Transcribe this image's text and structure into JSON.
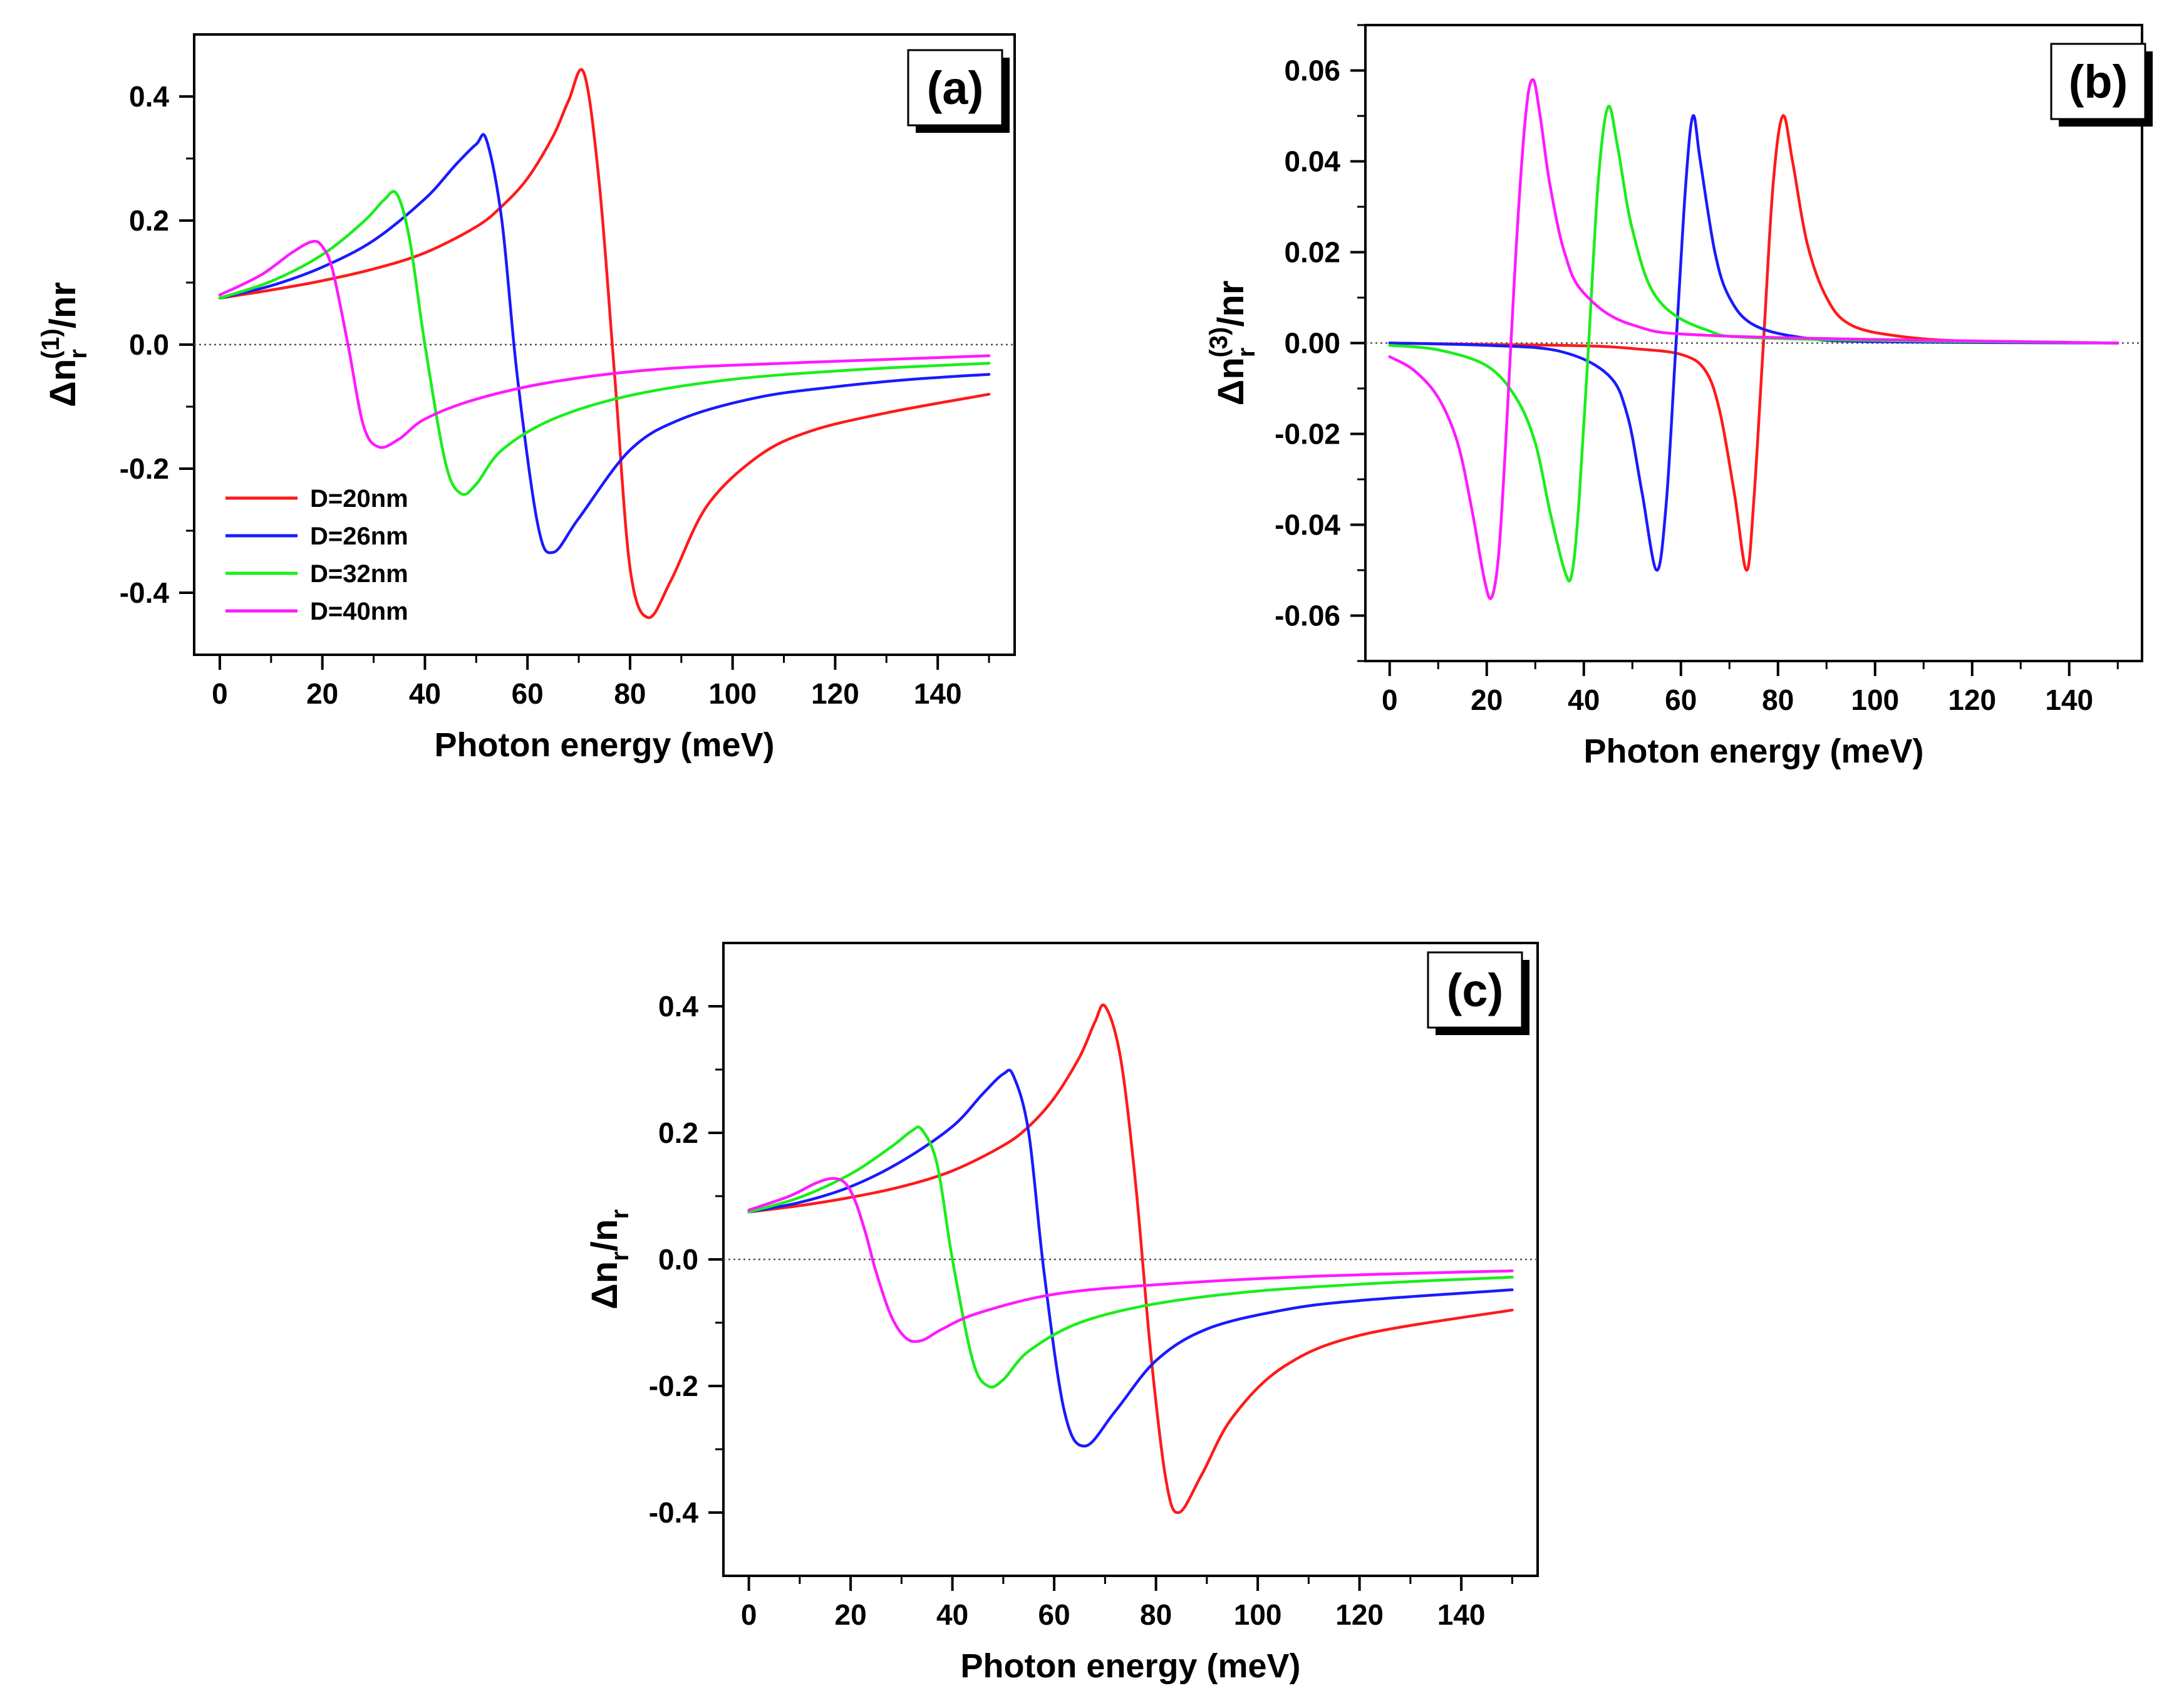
{
  "colors": {
    "D=20nm": "#ff1a1a",
    "D=26nm": "#1a1aff",
    "D=32nm": "#1aee1a",
    "D=40nm": "#ff1aff",
    "axis": "#000000",
    "zero_line": "#555555"
  },
  "chart_data": [
    {
      "id": "a",
      "type": "line",
      "panel_label": "(a)",
      "xlabel": "Photon energy (meV)",
      "ylabel": {
        "base": "Δn",
        "sub": "r",
        "sup": "(1)",
        "rest": "/nr"
      },
      "xlim": [
        -5,
        155
      ],
      "ylim": [
        -0.5,
        0.5
      ],
      "xticks": [
        0,
        20,
        40,
        60,
        80,
        100,
        120,
        140
      ],
      "yticks": [
        -0.4,
        -0.2,
        0.0,
        0.2,
        0.4
      ],
      "ytick_labels": [
        "-0.4",
        "-0.2",
        "0.0",
        "0.2",
        "0.4"
      ],
      "zero_line": true,
      "legend": {
        "position": "bottom-left",
        "entries": [
          "D=20nm",
          "D=26nm",
          "D=32nm",
          "D=40nm"
        ]
      },
      "series": [
        {
          "name": "D=20nm",
          "x": [
            0,
            10,
            20,
            30,
            40,
            50,
            55,
            60,
            65,
            68,
            71,
            74,
            77,
            80,
            83.5,
            88,
            95,
            105,
            115,
            130,
            150
          ],
          "y": [
            0.075,
            0.088,
            0.103,
            0.122,
            0.148,
            0.19,
            0.223,
            0.268,
            0.336,
            0.393,
            0.438,
            0.26,
            -0.05,
            -0.36,
            -0.44,
            -0.38,
            -0.26,
            -0.18,
            -0.14,
            -0.11,
            -0.08
          ]
        },
        {
          "name": "D=26nm",
          "x": [
            0,
            10,
            20,
            30,
            40,
            46,
            50,
            52,
            55,
            58,
            62,
            65,
            70,
            80,
            90,
            105,
            120,
            135,
            150
          ],
          "y": [
            0.075,
            0.095,
            0.125,
            0.168,
            0.235,
            0.29,
            0.323,
            0.33,
            0.2,
            -0.05,
            -0.29,
            -0.335,
            -0.28,
            -0.17,
            -0.12,
            -0.085,
            -0.068,
            -0.056,
            -0.048
          ]
        },
        {
          "name": "D=32nm",
          "x": [
            0,
            10,
            20,
            28,
            32,
            34.5,
            37,
            40,
            44,
            47,
            50,
            55,
            65,
            80,
            100,
            125,
            150
          ],
          "y": [
            0.075,
            0.102,
            0.145,
            0.198,
            0.233,
            0.243,
            0.17,
            0.0,
            -0.19,
            -0.24,
            -0.225,
            -0.17,
            -0.12,
            -0.082,
            -0.056,
            -0.04,
            -0.03
          ]
        },
        {
          "name": "D=40nm",
          "x": [
            0,
            8,
            14,
            18,
            20,
            22,
            25,
            28,
            31,
            35,
            40,
            50,
            65,
            85,
            110,
            150
          ],
          "y": [
            0.08,
            0.112,
            0.148,
            0.166,
            0.158,
            0.12,
            0.0,
            -0.13,
            -0.165,
            -0.152,
            -0.12,
            -0.088,
            -0.06,
            -0.04,
            -0.03,
            -0.018
          ]
        }
      ]
    },
    {
      "id": "b",
      "type": "line",
      "panel_label": "(b)",
      "xlabel": "Photon energy (meV)",
      "ylabel": {
        "base": "Δn",
        "sub": "r",
        "sup": "(3)",
        "rest": "/nr"
      },
      "xlim": [
        -5,
        155
      ],
      "ylim": [
        -0.07,
        0.07
      ],
      "xticks": [
        0,
        20,
        40,
        60,
        80,
        100,
        120,
        140
      ],
      "yticks": [
        -0.06,
        -0.04,
        -0.02,
        0.0,
        0.02,
        0.04,
        0.06
      ],
      "ytick_labels": [
        "-0.06",
        "-0.04",
        "-0.02",
        "0.00",
        "0.02",
        "0.04",
        "0.06"
      ],
      "zero_line": true,
      "series": [
        {
          "name": "D=20nm",
          "x": [
            0,
            20,
            40,
            50,
            60,
            65,
            68,
            71,
            73.5,
            75,
            77,
            79,
            81,
            83,
            86,
            90,
            95,
            105,
            120,
            150
          ],
          "y": [
            0.0,
            -0.0003,
            -0.0006,
            -0.0012,
            -0.0025,
            -0.006,
            -0.015,
            -0.033,
            -0.05,
            -0.035,
            0.0,
            0.035,
            0.05,
            0.04,
            0.022,
            0.01,
            0.004,
            0.0015,
            0.0004,
            0.0
          ]
        },
        {
          "name": "D=26nm",
          "x": [
            0,
            20,
            35,
            45,
            49,
            52,
            55,
            57,
            59,
            61,
            62.5,
            64,
            67,
            70,
            75,
            85,
            100,
            150
          ],
          "y": [
            0.0,
            -0.0005,
            -0.0018,
            -0.007,
            -0.016,
            -0.033,
            -0.05,
            -0.035,
            0.0,
            0.035,
            0.05,
            0.04,
            0.02,
            0.01,
            0.004,
            0.0012,
            0.0003,
            0.0
          ]
        },
        {
          "name": "D=32nm",
          "x": [
            0,
            10,
            20,
            26,
            30,
            33,
            36,
            37.5,
            39,
            41,
            43,
            45,
            47,
            50,
            55,
            65,
            80,
            150
          ],
          "y": [
            -0.0005,
            -0.0015,
            -0.005,
            -0.012,
            -0.022,
            -0.037,
            -0.05,
            -0.051,
            -0.035,
            0.0,
            0.036,
            0.052,
            0.043,
            0.025,
            0.01,
            0.003,
            0.001,
            0.0
          ]
        },
        {
          "name": "D=40nm",
          "x": [
            0,
            5,
            10,
            14,
            17,
            19.5,
            21,
            22.5,
            24,
            26,
            28,
            29.5,
            31,
            33,
            36,
            40,
            50,
            70,
            150
          ],
          "y": [
            -0.003,
            -0.006,
            -0.012,
            -0.022,
            -0.037,
            -0.052,
            -0.056,
            -0.046,
            -0.02,
            0.02,
            0.05,
            0.058,
            0.05,
            0.035,
            0.02,
            0.011,
            0.004,
            0.0015,
            0.0
          ]
        }
      ]
    },
    {
      "id": "c",
      "type": "line",
      "panel_label": "(c)",
      "xlabel": "Photon energy (meV)",
      "ylabel": {
        "base": "Δn",
        "sub": "r",
        "rest": "/n",
        "sub2": "r"
      },
      "xlim": [
        -5,
        155
      ],
      "ylim": [
        -0.5,
        0.5
      ],
      "xticks": [
        0,
        20,
        40,
        60,
        80,
        100,
        120,
        140
      ],
      "yticks": [
        -0.4,
        -0.2,
        0.0,
        0.2,
        0.4
      ],
      "ytick_labels": [
        "-0.4",
        "-0.2",
        "0.0",
        "0.2",
        "0.4"
      ],
      "zero_line": true,
      "series": [
        {
          "name": "D=20nm",
          "x": [
            0,
            10,
            20,
            30,
            40,
            50,
            55,
            60,
            65,
            68,
            70,
            73,
            76,
            79,
            82,
            84.5,
            89,
            95,
            105,
            120,
            150
          ],
          "y": [
            0.075,
            0.085,
            0.098,
            0.115,
            0.14,
            0.18,
            0.21,
            0.255,
            0.32,
            0.375,
            0.4,
            0.32,
            0.12,
            -0.15,
            -0.35,
            -0.4,
            -0.34,
            -0.25,
            -0.17,
            -0.12,
            -0.08
          ]
        },
        {
          "name": "D=26nm",
          "x": [
            0,
            10,
            20,
            30,
            40,
            46,
            50,
            52,
            55,
            58,
            62,
            66,
            72,
            80,
            90,
            105,
            120,
            150
          ],
          "y": [
            0.075,
            0.09,
            0.115,
            0.155,
            0.21,
            0.262,
            0.293,
            0.29,
            0.2,
            -0.02,
            -0.24,
            -0.295,
            -0.24,
            -0.16,
            -0.11,
            -0.08,
            -0.065,
            -0.048
          ]
        },
        {
          "name": "D=32nm",
          "x": [
            0,
            10,
            20,
            28,
            32,
            34,
            37,
            40,
            44,
            47,
            50,
            55,
            65,
            80,
            100,
            125,
            150
          ],
          "y": [
            0.075,
            0.098,
            0.135,
            0.178,
            0.203,
            0.205,
            0.15,
            0.0,
            -0.16,
            -0.2,
            -0.19,
            -0.145,
            -0.1,
            -0.07,
            -0.05,
            -0.037,
            -0.028
          ]
        },
        {
          "name": "D=40nm",
          "x": [
            0,
            8,
            13,
            16.5,
            19,
            21,
            23,
            25,
            28,
            31,
            34,
            38,
            45,
            60,
            80,
            110,
            150
          ],
          "y": [
            0.078,
            0.1,
            0.12,
            0.128,
            0.12,
            0.09,
            0.04,
            -0.02,
            -0.09,
            -0.125,
            -0.128,
            -0.11,
            -0.085,
            -0.055,
            -0.04,
            -0.027,
            -0.018
          ]
        }
      ]
    }
  ]
}
